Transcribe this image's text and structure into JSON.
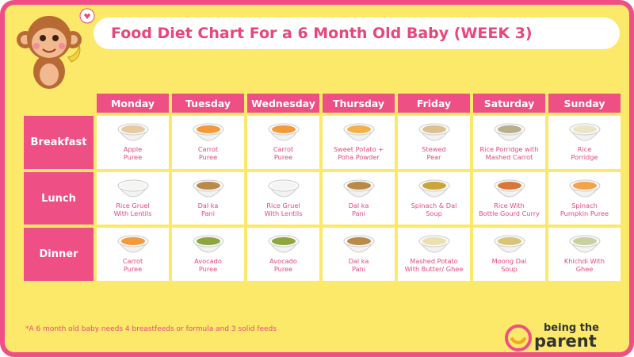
{
  "title": "Food Diet Chart For a 6 Month Old Baby (WEEK 3)",
  "days": [
    "Monday",
    "Tuesday",
    "Wednesday",
    "Thursday",
    "Friday",
    "Saturday",
    "Sunday"
  ],
  "rows": [
    {
      "meal": "Breakfast",
      "items": [
        [
          "Apple",
          "Puree"
        ],
        [
          "Carrot",
          "Puree"
        ],
        [
          "Carrot",
          "Puree"
        ],
        [
          "Sweet Potato +",
          "Poha Powder"
        ],
        [
          "Stewed",
          "Pear"
        ],
        [
          "Rice Porridge with",
          "Mashed Carrot"
        ],
        [
          "Rice",
          "Porridge"
        ]
      ]
    },
    {
      "meal": "Lunch",
      "items": [
        [
          "Rice Gruel",
          "With Lentils"
        ],
        [
          "Dal ka",
          "Pani"
        ],
        [
          "Rice Gruel",
          "With Lentils"
        ],
        [
          "Dal ka",
          "Pani"
        ],
        [
          "Spinach & Dal",
          "Soup"
        ],
        [
          "Rice With",
          "Bottle Gourd Curry"
        ],
        [
          "Spinach",
          "Pumpkin Puree"
        ]
      ]
    },
    {
      "meal": "Dinner",
      "items": [
        [
          "Carrot",
          "Puree"
        ],
        [
          "Avocado",
          "Puree"
        ],
        [
          "Avocado",
          "Puree"
        ],
        [
          "Dal ka",
          "Pani"
        ],
        [
          "Mashed Potato",
          "With Butter/ Ghee"
        ],
        [
          "Moong Dal",
          "Soup"
        ],
        [
          "Khichdi With",
          "Ghee"
        ]
      ]
    }
  ],
  "footnote": "*A 6 month old baby needs 4 breastfeeds or formula and 3 solid feeds",
  "logo": {
    "top": "being the",
    "bottom": "parent"
  }
}
